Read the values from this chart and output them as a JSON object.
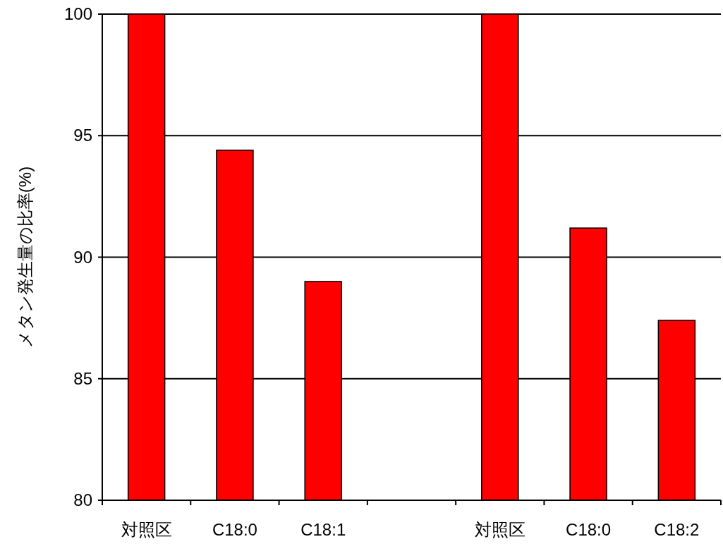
{
  "chart_data": {
    "type": "bar",
    "ylabel": "メタン発生量の比率(%)",
    "categories": [
      "対照区",
      "C18:0",
      "C18:1",
      null,
      "対照区",
      "C18:0",
      "C18:2"
    ],
    "values": [
      100,
      94.4,
      89.0,
      null,
      100,
      91.2,
      87.4
    ],
    "color": "#ff0000",
    "ylim": [
      80,
      100
    ],
    "yticks": [
      80,
      85,
      90,
      95,
      100
    ],
    "grid": "y"
  }
}
